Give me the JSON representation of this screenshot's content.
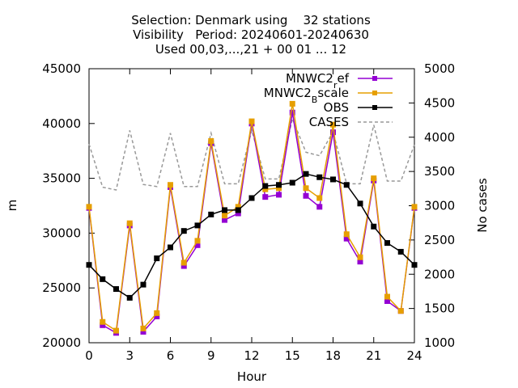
{
  "chart_data": {
    "type": "line",
    "title_lines": [
      "Selection: Denmark using    32 stations",
      "Visibility   Period: 20240601-20240630",
      "Used 00,03,...,21 + 00 01 ... 12"
    ],
    "xlabel": "Hour",
    "ylabel": "m",
    "y2label": "No cases",
    "xlim": [
      0,
      24
    ],
    "ylim": [
      20000,
      45000
    ],
    "y2lim": [
      1000,
      5000
    ],
    "xticks": [
      "0",
      "3",
      "6",
      "9",
      "12",
      "15",
      "18",
      "21",
      "24"
    ],
    "yticks": [
      "20000",
      "25000",
      "30000",
      "35000",
      "40000",
      "45000"
    ],
    "y2ticks": [
      "1000",
      "1500",
      "2000",
      "2500",
      "3000",
      "3500",
      "4000",
      "4500",
      "5000"
    ],
    "grid": false,
    "legend_position": "top-right",
    "x": [
      0,
      1,
      2,
      3,
      4,
      5,
      6,
      7,
      8,
      9,
      10,
      11,
      12,
      13,
      14,
      15,
      16,
      17,
      18,
      19,
      20,
      21,
      22,
      23,
      24
    ],
    "series": [
      {
        "name": "MNWC2_ref",
        "legend_main": "MNWC2",
        "legend_sub": "r",
        "legend_rest": "ef",
        "axis": "y",
        "color": "#9400d3",
        "marker": "square",
        "values": [
          32300,
          21600,
          20900,
          30700,
          21000,
          22400,
          34200,
          27000,
          28900,
          38200,
          31200,
          31800,
          40000,
          33300,
          33500,
          41000,
          33400,
          32400,
          39200,
          29500,
          27400,
          34800,
          23800,
          22900,
          32300
        ]
      },
      {
        "name": "MNWC2_Bscale",
        "legend_main": "MNWC2",
        "legend_sub": "B",
        "legend_rest": "scale",
        "axis": "y",
        "color": "#e69f00",
        "marker": "square",
        "values": [
          32400,
          21900,
          21100,
          30900,
          21300,
          22700,
          34400,
          27300,
          29300,
          38400,
          31600,
          32400,
          40200,
          34000,
          34100,
          41800,
          34100,
          33200,
          39900,
          29900,
          27800,
          35000,
          24200,
          22900,
          32400
        ]
      },
      {
        "name": "OBS",
        "legend_main": "OBS",
        "legend_sub": "",
        "legend_rest": "",
        "axis": "y",
        "color": "#000000",
        "marker": "square",
        "values": [
          27100,
          25800,
          24900,
          24100,
          25300,
          27700,
          28700,
          30200,
          30700,
          31700,
          32100,
          32100,
          33200,
          34300,
          34400,
          34600,
          35400,
          35100,
          34900,
          34400,
          32700,
          30600,
          29100,
          28300,
          27100
        ]
      },
      {
        "name": "CASES",
        "legend_main": "CASES",
        "legend_sub": "",
        "legend_rest": "",
        "axis": "y2",
        "color": "#999999",
        "marker": "none",
        "dashed": true,
        "values": [
          3900,
          3270,
          3230,
          4100,
          3310,
          3280,
          4060,
          3280,
          3280,
          4060,
          3320,
          3320,
          4100,
          3390,
          3390,
          4270,
          3780,
          3730,
          4080,
          3320,
          3320,
          4180,
          3360,
          3360,
          3890
        ]
      }
    ]
  }
}
